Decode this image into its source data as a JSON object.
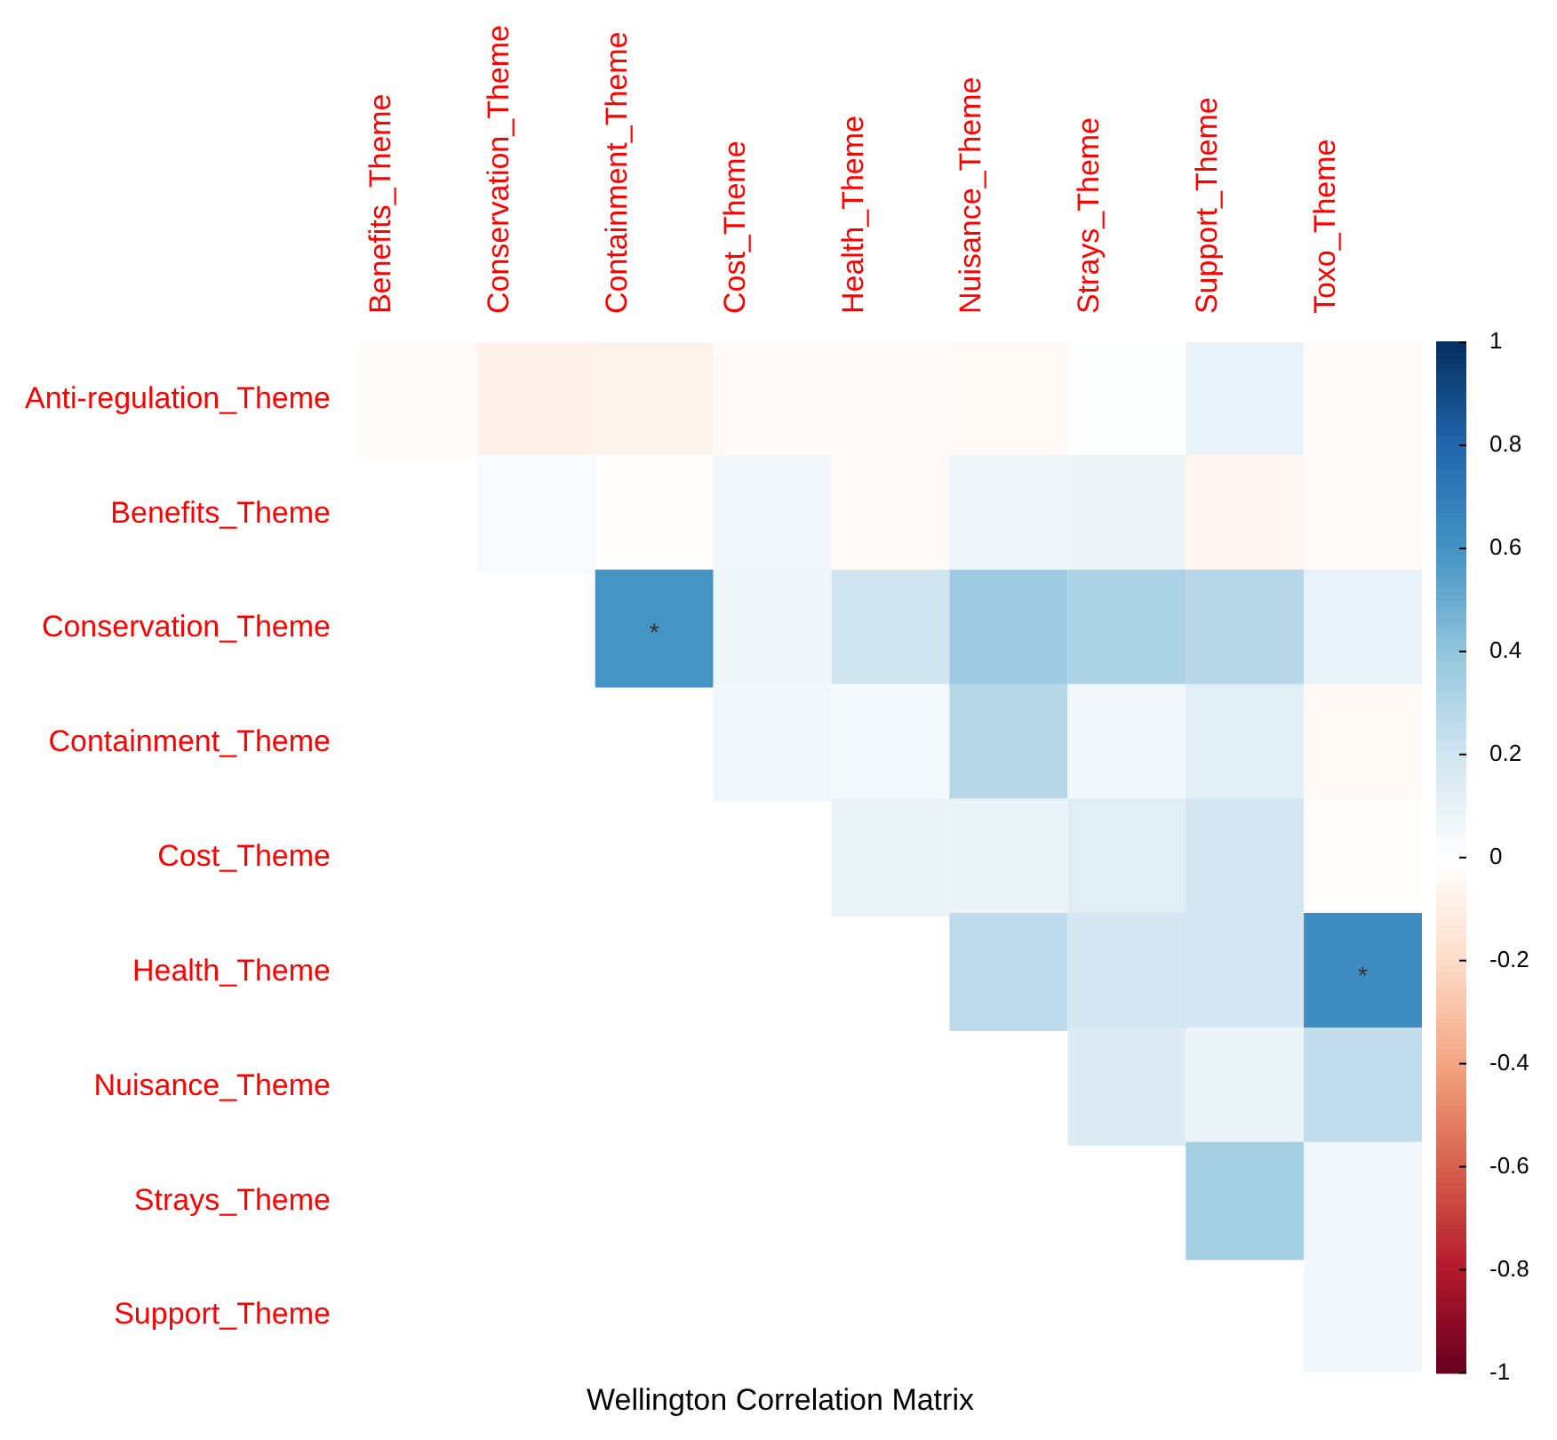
{
  "chart_data": {
    "type": "heatmap",
    "title": "Wellington Correlation Matrix",
    "categories": [
      "Benefits_Theme",
      "Conservation_Theme",
      "Containment_Theme",
      "Cost_Theme",
      "Health_Theme",
      "Nuisance_Theme",
      "Strays_Theme",
      "Support_Theme",
      "Toxo_Theme"
    ],
    "y_categories": [
      "Anti-regulation_Theme",
      "Benefits_Theme",
      "Conservation_Theme",
      "Containment_Theme",
      "Cost_Theme",
      "Health_Theme",
      "Nuisance_Theme",
      "Strays_Theme",
      "Support_Theme"
    ],
    "cells": [
      [
        -0.02,
        -0.07,
        -0.06,
        -0.03,
        -0.03,
        -0.04,
        0.01,
        0.1,
        -0.02
      ],
      [
        null,
        0.04,
        -0.01,
        0.06,
        -0.03,
        0.07,
        0.08,
        -0.05,
        -0.02
      ],
      [
        null,
        null,
        0.6,
        0.07,
        0.2,
        0.36,
        0.32,
        0.29,
        0.1
      ],
      [
        null,
        null,
        null,
        0.06,
        0.05,
        0.29,
        0.06,
        0.14,
        -0.04
      ],
      [
        null,
        null,
        null,
        null,
        0.09,
        0.09,
        0.14,
        0.19,
        -0.01
      ],
      [
        null,
        null,
        null,
        null,
        null,
        0.26,
        0.19,
        0.19,
        0.63
      ],
      [
        null,
        null,
        null,
        null,
        null,
        null,
        0.15,
        0.09,
        0.25
      ],
      [
        null,
        null,
        null,
        null,
        null,
        null,
        null,
        0.34,
        0.06
      ],
      [
        null,
        null,
        null,
        null,
        null,
        null,
        null,
        null,
        0.06
      ]
    ],
    "cell_labels": [
      [
        null,
        null,
        null,
        null,
        null,
        null,
        null,
        null,
        null
      ],
      [
        null,
        null,
        null,
        null,
        null,
        null,
        null,
        null,
        null
      ],
      [
        null,
        null,
        "*",
        null,
        null,
        null,
        null,
        null,
        null
      ],
      [
        null,
        null,
        null,
        null,
        null,
        null,
        null,
        null,
        null
      ],
      [
        null,
        null,
        null,
        null,
        null,
        null,
        null,
        null,
        null
      ],
      [
        null,
        null,
        null,
        null,
        null,
        null,
        null,
        null,
        "*"
      ],
      [
        null,
        null,
        null,
        null,
        null,
        null,
        null,
        null,
        null
      ],
      [
        null,
        null,
        null,
        null,
        null,
        null,
        null,
        null,
        null
      ],
      [
        null,
        null,
        null,
        null,
        null,
        null,
        null,
        null,
        null
      ]
    ],
    "clim": [
      -1,
      1
    ],
    "cticks": [
      1,
      0.8,
      0.6,
      0.4,
      0.2,
      0,
      -0.2,
      -0.4,
      -0.6,
      -0.8,
      -1
    ]
  }
}
